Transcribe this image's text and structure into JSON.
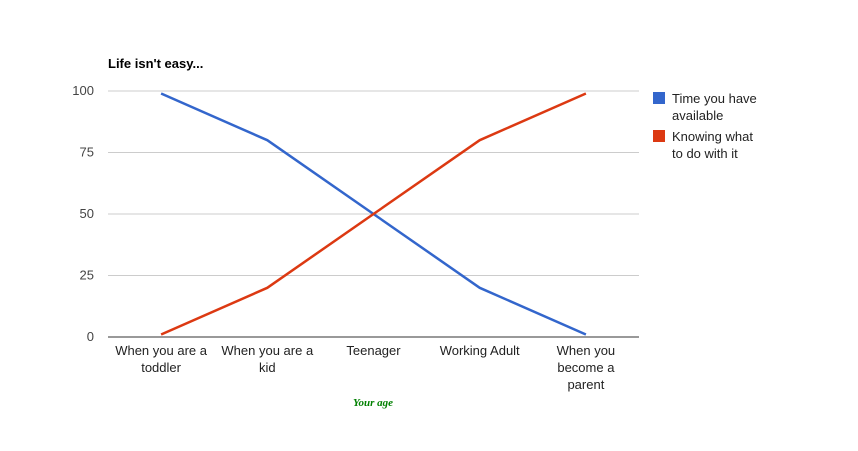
{
  "chart_data": {
    "type": "line",
    "title": "Life isn't easy...",
    "xlabel": "Your age",
    "ylabel": "",
    "categories": [
      [
        "When you are a",
        "toddler"
      ],
      [
        "When you are a",
        "kid"
      ],
      [
        "Teenager"
      ],
      [
        "Working Adult"
      ],
      [
        "When you",
        "become a",
        "parent"
      ]
    ],
    "ylim": [
      0,
      100
    ],
    "yticks": [
      "0",
      "25",
      "50",
      "75",
      "100"
    ],
    "ytick_values": [
      0,
      25,
      50,
      75,
      100
    ],
    "grid": true,
    "legend_position": "right",
    "series": [
      {
        "name": [
          "Time you have",
          "available"
        ],
        "values": [
          99,
          80,
          50,
          20,
          1
        ],
        "color": "#3366cc"
      },
      {
        "name": [
          "Knowing what",
          "to do with it"
        ],
        "values": [
          1,
          20,
          50,
          80,
          99
        ],
        "color": "#dc3912"
      }
    ],
    "xlabel_color": "#008000",
    "grid_color": "#cccccc",
    "axis_color": "#333333"
  }
}
